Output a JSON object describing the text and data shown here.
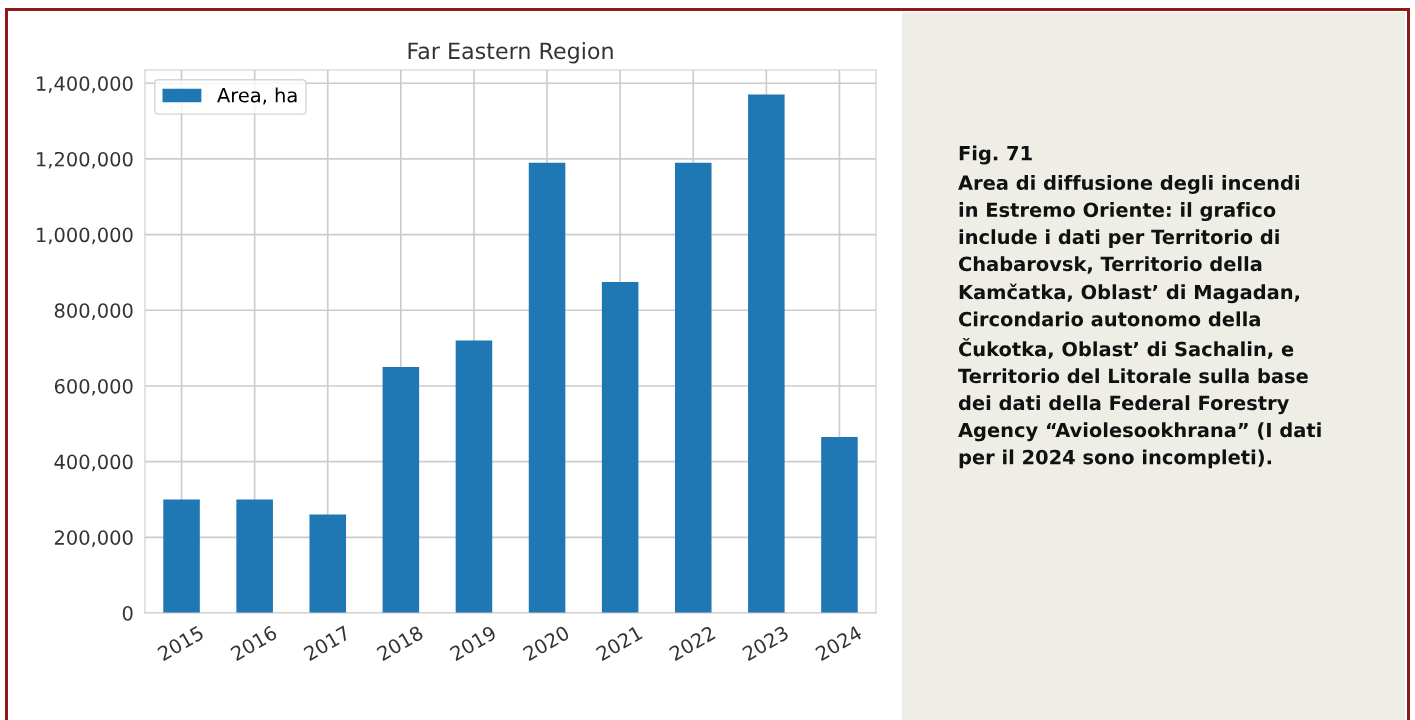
{
  "chart_data": {
    "type": "bar",
    "title": "Far Eastern Region",
    "categories": [
      "2015",
      "2016",
      "2017",
      "2018",
      "2019",
      "2020",
      "2021",
      "2022",
      "2023",
      "2024"
    ],
    "series": [
      {
        "name": "Area, ha",
        "color": "#1f77b4",
        "values": [
          300000,
          300000,
          260000,
          650000,
          720000,
          1190000,
          875000,
          1190000,
          1370000,
          465000
        ]
      }
    ],
    "ylim": [
      0,
      1435000
    ],
    "yticks": [
      {
        "value": 0,
        "label": "0"
      },
      {
        "value": 200000,
        "label": "200,000"
      },
      {
        "value": 400000,
        "label": "400,000"
      },
      {
        "value": 600000,
        "label": "600,000"
      },
      {
        "value": 800000,
        "label": "800,000"
      },
      {
        "value": 1000000,
        "label": "1,000,000"
      },
      {
        "value": 1200000,
        "label": "1,200,000"
      },
      {
        "value": 1400000,
        "label": "1,400,000"
      }
    ],
    "grid": true,
    "legend": "top left",
    "annotations": [
      "Fig. 71",
      "Area di diffusione degli incendi\nin Estremo Oriente: il grafico\ninclude i dati per Territorio di\nChabarovsk, Territorio della\nKamčatka, Oblast’ di Magadan,\nCircondario autonomo della\nČukotka, Oblast’ di Sachalin, e\nTerritorio del Litorale sulla base\ndei dati della Federal Forestry\nAgency “Aviolesookhrana” (I dati\nper il 2024 sono incompleti)."
    ]
  }
}
